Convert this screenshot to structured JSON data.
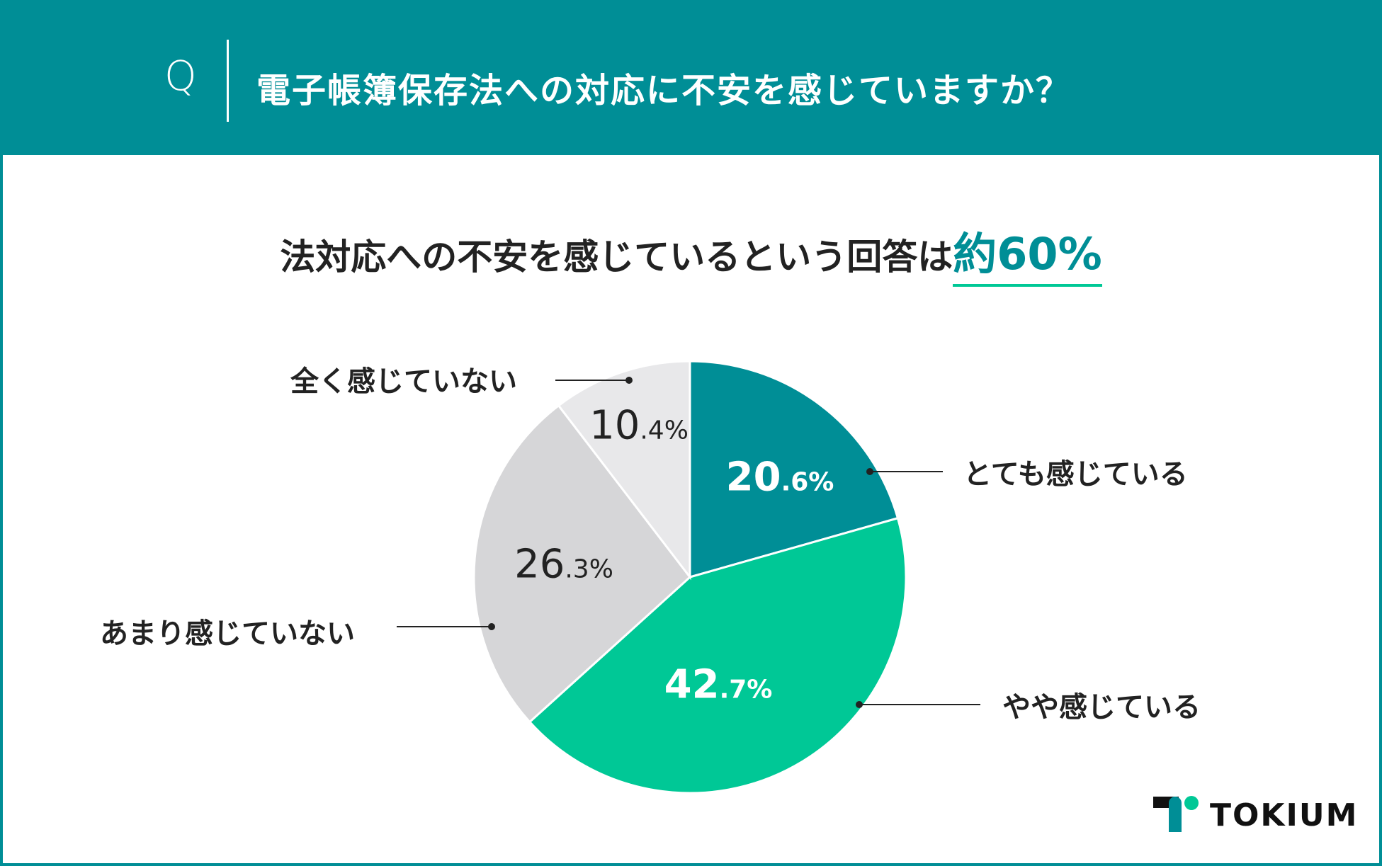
{
  "header": {
    "q_mark": "Q",
    "title": "電子帳簿保存法への対応に不安を感じていますか？"
  },
  "subtitle": {
    "text": "法対応への不安を感じているという回答は",
    "highlight": "約60%"
  },
  "chart_data": {
    "type": "pie",
    "start": "top",
    "direction": "clockwise",
    "categories": [
      "とても感じている",
      "やや感じている",
      "あまり感じていない",
      "全く感じていない"
    ],
    "values": [
      20.6,
      42.7,
      26.3,
      10.4
    ],
    "labels": [
      {
        "int": "20",
        "dec": ".6%"
      },
      {
        "int": "42",
        "dec": ".7%"
      },
      {
        "int": "26",
        "dec": ".3%"
      },
      {
        "int": "10",
        "dec": ".4%"
      }
    ],
    "colors": [
      "#008E96",
      "#00C896",
      "#D6D6D8",
      "#E8E8EA"
    ],
    "label_colors": [
      "#FFFFFF",
      "#FFFFFF",
      "#222222",
      "#222222"
    ]
  },
  "brand": {
    "name": "TOKIUM",
    "colors": {
      "teal": "#008E96",
      "green": "#00C896"
    }
  }
}
